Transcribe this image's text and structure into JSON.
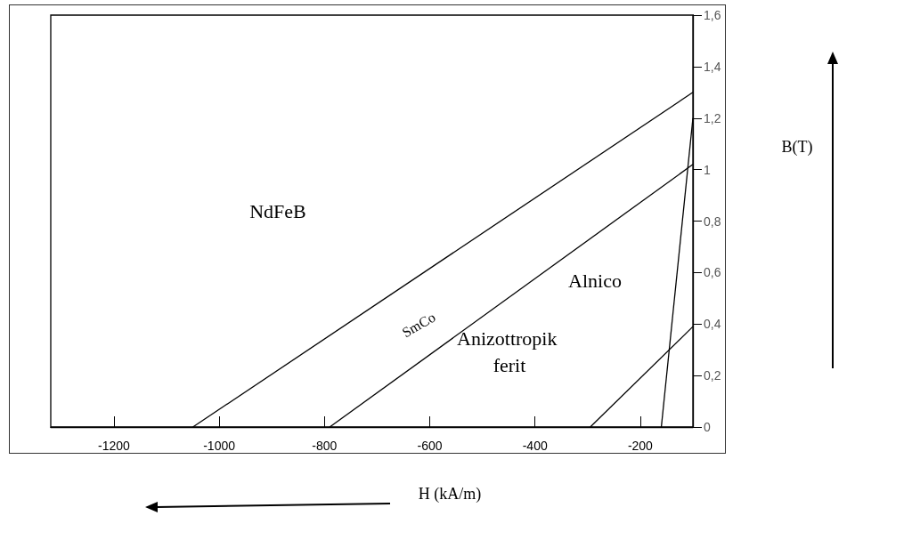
{
  "chart_data": {
    "type": "line",
    "xlabel": "H (kA/m)",
    "ylabel": "B(T)",
    "series": [
      {
        "color": "#000000",
        "x": [
          -1050,
          -100
        ],
        "values": [
          0,
          1.3
        ]
      },
      {
        "color": "#000000",
        "x": [
          -790,
          -100
        ],
        "values": [
          0,
          1.02
        ]
      },
      {
        "color": "#000000",
        "x": [
          -160,
          -100
        ],
        "values": [
          0,
          1.2
        ]
      },
      {
        "color": "#000000",
        "x": [
          -295,
          -100
        ],
        "values": [
          0,
          0.39
        ]
      }
    ],
    "xlim": [
      -1320,
      -100
    ],
    "xticks": [
      -1200,
      -1000,
      -800,
      -600,
      -400,
      -200
    ],
    "ylim": [
      0,
      1.6
    ],
    "yticks": [
      0,
      {
        "value": 0.2,
        "label": "0,2"
      },
      {
        "value": 0.4,
        "label": "0,4"
      },
      {
        "value": 0.6,
        "label": "0,6"
      },
      {
        "value": 0.8,
        "label": "0,8"
      },
      1,
      {
        "value": 1.2,
        "label": "1,2"
      },
      {
        "value": 1.4,
        "label": "1,4"
      },
      {
        "value": 1.6,
        "label": "1,6"
      }
    ],
    "annotations": [
      "NdFeB",
      "SmCo",
      "Alnico",
      "Anizottropik ferit"
    ],
    "grid": false,
    "marker": "none",
    "line_style": "solid"
  }
}
